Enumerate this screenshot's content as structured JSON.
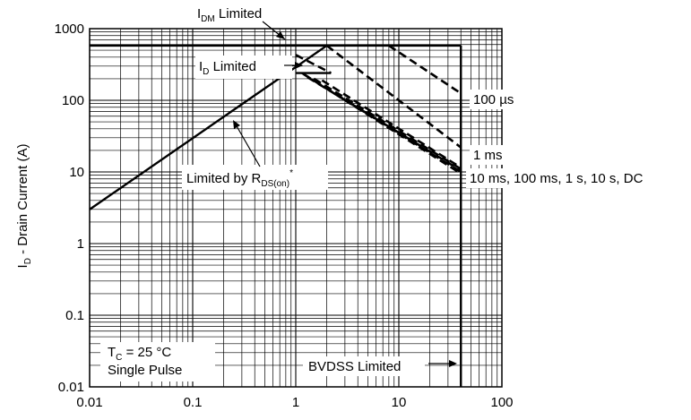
{
  "chart_data": {
    "type": "line",
    "x_scale": "log",
    "y_scale": "log",
    "xlim": [
      0.01,
      100
    ],
    "ylim": [
      0.01,
      1000
    ],
    "grid": true,
    "x_ticks": [
      "0.01",
      "0.1",
      "1",
      "10",
      "100"
    ],
    "y_ticks": [
      "0.01",
      "0.1",
      "1",
      "10",
      "100",
      "1000"
    ],
    "ylabel": {
      "main": "I",
      "sub": "D",
      "rest": " - Drain Current (A)"
    },
    "xlabel": "",
    "series": [
      {
        "name": "Limited by R_DS(on)",
        "style": "solid",
        "x": [
          0.01,
          2.0
        ],
        "y": [
          3.0,
          580
        ]
      },
      {
        "name": "I_DM Limited",
        "style": "solid",
        "x": [
          0.01,
          40
        ],
        "y": [
          580,
          580
        ]
      },
      {
        "name": "BVDSS Limited",
        "style": "solid",
        "x": [
          40,
          40
        ],
        "y": [
          0.01,
          580
        ]
      },
      {
        "name": "I_D Limited",
        "style": "solid",
        "x": [
          1.0,
          2.2
        ],
        "y": [
          240,
          240
        ]
      },
      {
        "name": "100 µs",
        "style": "dashed",
        "x": [
          8.0,
          40
        ],
        "y": [
          580,
          125
        ]
      },
      {
        "name": "1 ms",
        "style": "dashed",
        "x": [
          2.0,
          40
        ],
        "y": [
          580,
          22
        ]
      },
      {
        "name": "10 ms",
        "style": "dashed",
        "x": [
          1.15,
          40
        ],
        "y": [
          240,
          9.5
        ]
      },
      {
        "name": "100 ms",
        "style": "dashed",
        "x": [
          1.2,
          40
        ],
        "y": [
          230,
          10
        ]
      },
      {
        "name": "1 s",
        "style": "dashed",
        "x": [
          1.3,
          40
        ],
        "y": [
          210,
          10.5
        ]
      },
      {
        "name": "10 s",
        "style": "dashed",
        "x": [
          1.5,
          40
        ],
        "y": [
          200,
          11
        ]
      },
      {
        "name": "DC",
        "style": "dashed",
        "x": [
          1.8,
          40
        ],
        "y": [
          190,
          11.5
        ]
      },
      {
        "name": "",
        "style": "dashed",
        "x": [
          1.0,
          2.2
        ],
        "y": [
          430,
          240
        ]
      }
    ],
    "annotations": {
      "idm": {
        "main": "I",
        "sub": "DM",
        "rest": " Limited"
      },
      "id": {
        "main": "I",
        "sub": "D",
        "rest": " Limited"
      },
      "rds": {
        "main": "Limited by R",
        "sub": "DS(on)",
        "sup": "*"
      },
      "us100": "100 µs",
      "ms1": "1 ms",
      "dc": "10 ms, 100 ms, 1 s, 10 s, DC",
      "tc": {
        "main": "T",
        "sub": "C",
        "rest": " = 25 °C"
      },
      "pulse": "Single Pulse",
      "bvdss": "BVDSS Limited"
    }
  }
}
